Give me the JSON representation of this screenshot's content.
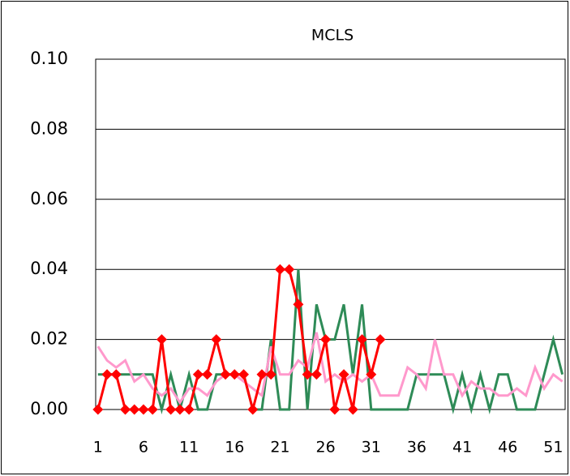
{
  "chart_data": {
    "type": "line",
    "title": "MCLS",
    "x": [
      1,
      2,
      3,
      4,
      5,
      6,
      7,
      8,
      9,
      10,
      11,
      12,
      13,
      14,
      15,
      16,
      17,
      18,
      19,
      20,
      21,
      22,
      23,
      24,
      25,
      26,
      27,
      28,
      29,
      30,
      31,
      32,
      33,
      34,
      35,
      36,
      37,
      38,
      39,
      40,
      41,
      42,
      43,
      44,
      45,
      46,
      47,
      48,
      49,
      50,
      51,
      52
    ],
    "xlim": [
      0.75,
      52.3
    ],
    "xticks": [
      1,
      6,
      11,
      16,
      21,
      26,
      31,
      36,
      41,
      46,
      51
    ],
    "ylim": [
      0,
      0.1
    ],
    "yticks": [
      {
        "value": 0,
        "label": "0.00"
      },
      {
        "value": 0.02,
        "label": "0.02"
      },
      {
        "value": 0.04,
        "label": "0.04"
      },
      {
        "value": 0.06,
        "label": "0.06"
      },
      {
        "value": 0.08,
        "label": "0.08"
      },
      {
        "value": 0.1,
        "label": "0.10"
      }
    ],
    "grid": true,
    "series": [
      {
        "color": "#2e8b57",
        "values": [
          0.01,
          0.01,
          0.01,
          0.01,
          0.01,
          0.01,
          0.01,
          0,
          0.01,
          0,
          0.01,
          0,
          0,
          0.01,
          0.01,
          0.01,
          0.01,
          0,
          0,
          0.02,
          0,
          0,
          0.04,
          0,
          0.03,
          0.02,
          0.02,
          0.03,
          0.01,
          0.03,
          0,
          0,
          0,
          0,
          0,
          0.01,
          0.01,
          0.01,
          0.01,
          0,
          0.01,
          0,
          0.01,
          0,
          0.01,
          0.01,
          0,
          0,
          0,
          0.01,
          0.02,
          0.01
        ]
      },
      {
        "color": "#ff99cc",
        "values": [
          0.018,
          0.014,
          0.012,
          0.014,
          0.008,
          0.01,
          0.006,
          0.004,
          0.006,
          0.002,
          0.006,
          0.006,
          0.004,
          0.008,
          0.01,
          0.01,
          0.008,
          0.006,
          0.004,
          0.018,
          0.01,
          0.01,
          0.014,
          0.012,
          0.022,
          0.008,
          0.01,
          0.008,
          0.01,
          0.008,
          0.01,
          0.004,
          0.004,
          0.004,
          0.012,
          0.01,
          0.006,
          0.02,
          0.01,
          0.01,
          0.004,
          0.008,
          0.006,
          0.006,
          0.004,
          0.004,
          0.006,
          0.004,
          0.012,
          0.006,
          0.01,
          0.008
        ]
      },
      {
        "color": "#ff0000",
        "marker": "diamond",
        "values": [
          0,
          0.01,
          0.01,
          0,
          0,
          0,
          0,
          0.02,
          0,
          0,
          0,
          0.01,
          0.01,
          0.02,
          0.01,
          0.01,
          0.01,
          0,
          0.01,
          0.01,
          0.04,
          0.04,
          0.03,
          0.01,
          0.01,
          0.02,
          0,
          0.01,
          0,
          0.02,
          0.01,
          0.02,
          null,
          null,
          null,
          null,
          null,
          null,
          null,
          null,
          null,
          null,
          null,
          null,
          null,
          null,
          null,
          null,
          null,
          null,
          null,
          null
        ]
      }
    ]
  }
}
